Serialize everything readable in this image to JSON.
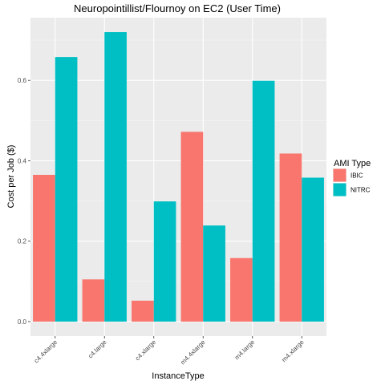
{
  "chart_data": {
    "type": "bar",
    "title": "Neuropointillist/Flournoy on EC2 (User Time)",
    "xlabel": "InstanceType",
    "ylabel": "Cost per Job ($)",
    "categories": [
      "c4.4xlarge",
      "c4.large",
      "c4.xlarge",
      "m4.4xlarge",
      "m4.large",
      "m4.xlarge"
    ],
    "series": [
      {
        "name": "IBIC",
        "color": "#F8766D",
        "values": [
          0.365,
          0.105,
          0.052,
          0.472,
          0.158,
          0.418
        ]
      },
      {
        "name": "NITRC",
        "color": "#00BFC4",
        "values": [
          0.658,
          0.72,
          0.299,
          0.239,
          0.599,
          0.358
        ]
      }
    ],
    "yticks": [
      "0.0",
      "0.2",
      "0.4",
      "0.6"
    ],
    "ylim": [
      -0.036,
      0.756
    ],
    "legend": {
      "title": "AMI Type",
      "position": "right"
    },
    "grid": true
  }
}
